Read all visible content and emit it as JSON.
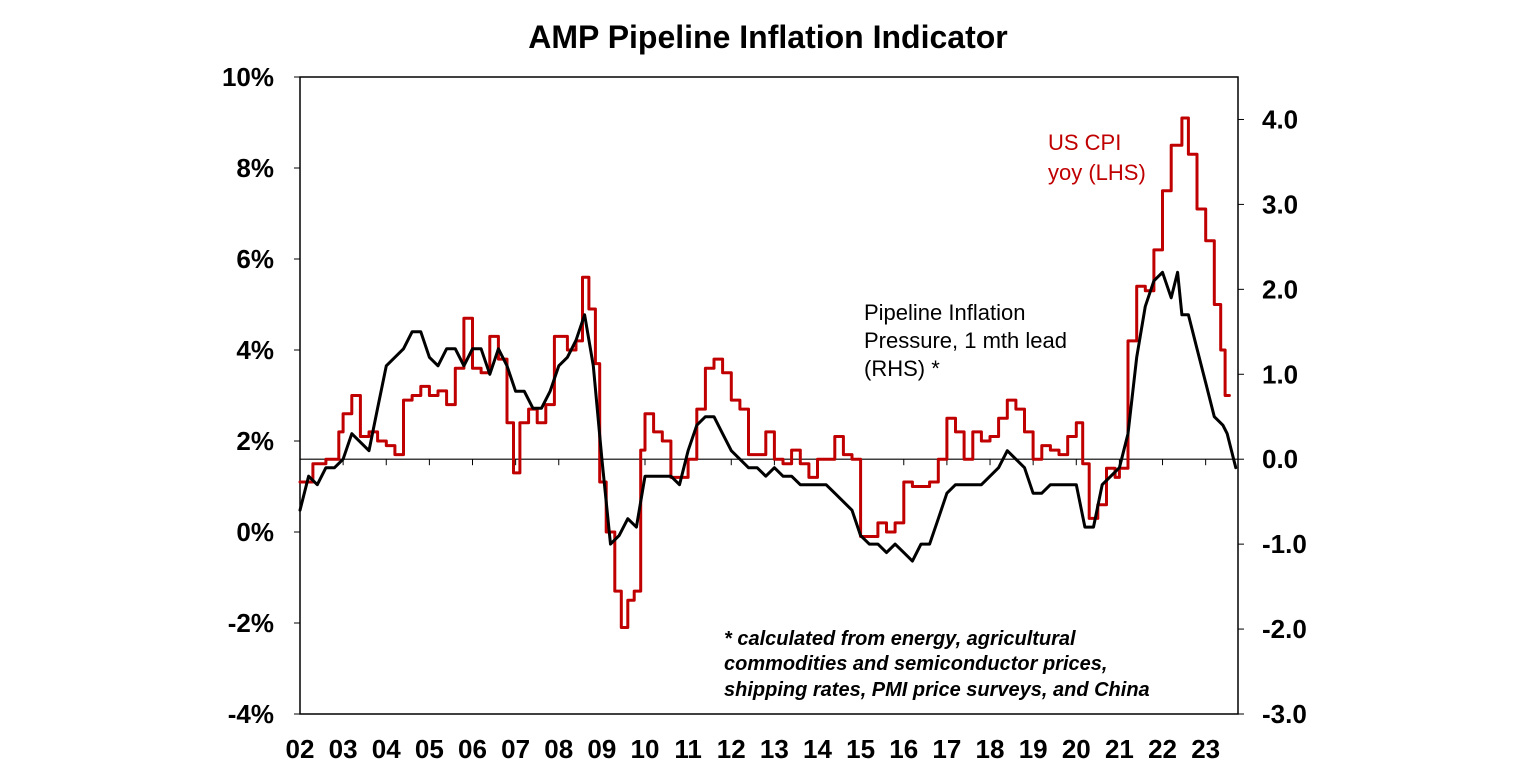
{
  "chart_data": {
    "type": "line",
    "title": "AMP Pipeline Inflation Indicator",
    "x_labels": [
      "02",
      "03",
      "04",
      "05",
      "06",
      "07",
      "08",
      "09",
      "10",
      "11",
      "12",
      "13",
      "14",
      "15",
      "16",
      "17",
      "18",
      "19",
      "20",
      "21",
      "22",
      "23"
    ],
    "x_range": [
      2002.0,
      2023.75
    ],
    "y_left": {
      "range": [
        -4,
        10
      ],
      "ticks": [
        -4,
        -2,
        0,
        2,
        4,
        6,
        8,
        10
      ],
      "tick_labels": [
        "-4%",
        "-2%",
        "0%",
        "2%",
        "4%",
        "6%",
        "8%",
        "10%"
      ]
    },
    "y_right": {
      "range": [
        -3,
        4.5
      ],
      "ticks": [
        -3,
        -2,
        -1,
        0,
        1,
        2,
        3,
        4
      ],
      "tick_labels": [
        "-3.0",
        "-2.0",
        "-1.0",
        "0.0",
        "1.0",
        "2.0",
        "3.0",
        "4.0"
      ]
    },
    "series": [
      {
        "name": "US CPI yoy (LHS)",
        "axis": "left",
        "color": "#C00000",
        "label_lines": [
          "US CPI",
          "yoy (LHS)"
        ],
        "points": [
          [
            2002.0,
            1.1
          ],
          [
            2002.3,
            1.5
          ],
          [
            2002.6,
            1.6
          ],
          [
            2002.9,
            2.2
          ],
          [
            2003.0,
            2.6
          ],
          [
            2003.2,
            3.0
          ],
          [
            2003.4,
            2.1
          ],
          [
            2003.6,
            2.2
          ],
          [
            2003.8,
            2.0
          ],
          [
            2004.0,
            1.9
          ],
          [
            2004.2,
            1.7
          ],
          [
            2004.4,
            2.9
          ],
          [
            2004.6,
            3.0
          ],
          [
            2004.8,
            3.2
          ],
          [
            2005.0,
            3.0
          ],
          [
            2005.2,
            3.1
          ],
          [
            2005.4,
            2.8
          ],
          [
            2005.6,
            3.6
          ],
          [
            2005.8,
            4.7
          ],
          [
            2006.0,
            3.6
          ],
          [
            2006.2,
            3.5
          ],
          [
            2006.4,
            4.3
          ],
          [
            2006.6,
            3.8
          ],
          [
            2006.8,
            2.4
          ],
          [
            2006.95,
            1.3
          ],
          [
            2007.1,
            2.4
          ],
          [
            2007.3,
            2.7
          ],
          [
            2007.5,
            2.4
          ],
          [
            2007.7,
            2.8
          ],
          [
            2007.9,
            4.3
          ],
          [
            2008.0,
            4.3
          ],
          [
            2008.2,
            4.0
          ],
          [
            2008.4,
            4.2
          ],
          [
            2008.55,
            5.6
          ],
          [
            2008.7,
            4.9
          ],
          [
            2008.85,
            3.7
          ],
          [
            2008.95,
            1.1
          ],
          [
            2009.1,
            0.0
          ],
          [
            2009.3,
            -1.3
          ],
          [
            2009.45,
            -2.1
          ],
          [
            2009.6,
            -1.5
          ],
          [
            2009.75,
            -1.3
          ],
          [
            2009.9,
            1.8
          ],
          [
            2010.0,
            2.6
          ],
          [
            2010.2,
            2.2
          ],
          [
            2010.4,
            2.0
          ],
          [
            2010.6,
            1.2
          ],
          [
            2010.8,
            1.2
          ],
          [
            2011.0,
            1.6
          ],
          [
            2011.2,
            2.7
          ],
          [
            2011.4,
            3.6
          ],
          [
            2011.6,
            3.8
          ],
          [
            2011.8,
            3.5
          ],
          [
            2012.0,
            2.9
          ],
          [
            2012.2,
            2.7
          ],
          [
            2012.4,
            1.7
          ],
          [
            2012.6,
            1.7
          ],
          [
            2012.8,
            2.2
          ],
          [
            2013.0,
            1.6
          ],
          [
            2013.2,
            1.5
          ],
          [
            2013.4,
            1.8
          ],
          [
            2013.6,
            1.5
          ],
          [
            2013.8,
            1.2
          ],
          [
            2014.0,
            1.6
          ],
          [
            2014.2,
            1.6
          ],
          [
            2014.4,
            2.1
          ],
          [
            2014.6,
            1.7
          ],
          [
            2014.8,
            1.6
          ],
          [
            2015.0,
            -0.1
          ],
          [
            2015.2,
            -0.1
          ],
          [
            2015.4,
            0.2
          ],
          [
            2015.6,
            0.0
          ],
          [
            2015.8,
            0.2
          ],
          [
            2016.0,
            1.1
          ],
          [
            2016.2,
            1.0
          ],
          [
            2016.4,
            1.0
          ],
          [
            2016.6,
            1.1
          ],
          [
            2016.8,
            1.6
          ],
          [
            2017.0,
            2.5
          ],
          [
            2017.2,
            2.2
          ],
          [
            2017.4,
            1.6
          ],
          [
            2017.6,
            2.2
          ],
          [
            2017.8,
            2.0
          ],
          [
            2018.0,
            2.1
          ],
          [
            2018.2,
            2.5
          ],
          [
            2018.4,
            2.9
          ],
          [
            2018.6,
            2.7
          ],
          [
            2018.8,
            2.2
          ],
          [
            2019.0,
            1.6
          ],
          [
            2019.2,
            1.9
          ],
          [
            2019.4,
            1.8
          ],
          [
            2019.6,
            1.7
          ],
          [
            2019.8,
            2.1
          ],
          [
            2020.0,
            2.4
          ],
          [
            2020.15,
            1.5
          ],
          [
            2020.3,
            0.3
          ],
          [
            2020.5,
            0.6
          ],
          [
            2020.7,
            1.4
          ],
          [
            2020.9,
            1.2
          ],
          [
            2021.0,
            1.4
          ],
          [
            2021.2,
            4.2
          ],
          [
            2021.4,
            5.4
          ],
          [
            2021.6,
            5.3
          ],
          [
            2021.8,
            6.2
          ],
          [
            2022.0,
            7.5
          ],
          [
            2022.2,
            8.5
          ],
          [
            2022.45,
            9.1
          ],
          [
            2022.6,
            8.3
          ],
          [
            2022.8,
            7.1
          ],
          [
            2023.0,
            6.4
          ],
          [
            2023.2,
            5.0
          ],
          [
            2023.35,
            4.0
          ],
          [
            2023.45,
            3.0
          ],
          [
            2023.55,
            3.0
          ]
        ]
      },
      {
        "name": "Pipeline Inflation Pressure, 1 mth lead (RHS) *",
        "axis": "right",
        "color": "#000000",
        "label_lines": [
          "Pipeline Inflation",
          "Pressure, 1 mth lead",
          "(RHS) *"
        ],
        "points": [
          [
            2002.0,
            -0.6
          ],
          [
            2002.2,
            -0.2
          ],
          [
            2002.4,
            -0.3
          ],
          [
            2002.6,
            -0.1
          ],
          [
            2002.8,
            -0.1
          ],
          [
            2003.0,
            0.0
          ],
          [
            2003.2,
            0.3
          ],
          [
            2003.4,
            0.2
          ],
          [
            2003.6,
            0.1
          ],
          [
            2003.8,
            0.6
          ],
          [
            2004.0,
            1.1
          ],
          [
            2004.2,
            1.2
          ],
          [
            2004.4,
            1.3
          ],
          [
            2004.6,
            1.5
          ],
          [
            2004.8,
            1.5
          ],
          [
            2005.0,
            1.2
          ],
          [
            2005.2,
            1.1
          ],
          [
            2005.4,
            1.3
          ],
          [
            2005.6,
            1.3
          ],
          [
            2005.8,
            1.1
          ],
          [
            2006.0,
            1.3
          ],
          [
            2006.2,
            1.3
          ],
          [
            2006.4,
            1.0
          ],
          [
            2006.6,
            1.3
          ],
          [
            2006.8,
            1.1
          ],
          [
            2007.0,
            0.8
          ],
          [
            2007.2,
            0.8
          ],
          [
            2007.4,
            0.6
          ],
          [
            2007.6,
            0.6
          ],
          [
            2007.8,
            0.8
          ],
          [
            2008.0,
            1.1
          ],
          [
            2008.2,
            1.2
          ],
          [
            2008.4,
            1.4
          ],
          [
            2008.6,
            1.7
          ],
          [
            2008.8,
            1.1
          ],
          [
            2009.0,
            0.0
          ],
          [
            2009.2,
            -1.0
          ],
          [
            2009.4,
            -0.9
          ],
          [
            2009.6,
            -0.7
          ],
          [
            2009.8,
            -0.8
          ],
          [
            2010.0,
            -0.2
          ],
          [
            2010.2,
            -0.2
          ],
          [
            2010.4,
            -0.2
          ],
          [
            2010.6,
            -0.2
          ],
          [
            2010.8,
            -0.3
          ],
          [
            2011.0,
            0.1
          ],
          [
            2011.2,
            0.4
          ],
          [
            2011.4,
            0.5
          ],
          [
            2011.6,
            0.5
          ],
          [
            2011.8,
            0.3
          ],
          [
            2012.0,
            0.1
          ],
          [
            2012.2,
            0.0
          ],
          [
            2012.4,
            -0.1
          ],
          [
            2012.6,
            -0.1
          ],
          [
            2012.8,
            -0.2
          ],
          [
            2013.0,
            -0.1
          ],
          [
            2013.2,
            -0.2
          ],
          [
            2013.4,
            -0.2
          ],
          [
            2013.6,
            -0.3
          ],
          [
            2013.8,
            -0.3
          ],
          [
            2014.0,
            -0.3
          ],
          [
            2014.2,
            -0.3
          ],
          [
            2014.4,
            -0.4
          ],
          [
            2014.6,
            -0.5
          ],
          [
            2014.8,
            -0.6
          ],
          [
            2015.0,
            -0.9
          ],
          [
            2015.2,
            -1.0
          ],
          [
            2015.4,
            -1.0
          ],
          [
            2015.6,
            -1.1
          ],
          [
            2015.8,
            -1.0
          ],
          [
            2016.0,
            -1.1
          ],
          [
            2016.2,
            -1.2
          ],
          [
            2016.4,
            -1.0
          ],
          [
            2016.6,
            -1.0
          ],
          [
            2016.8,
            -0.7
          ],
          [
            2017.0,
            -0.4
          ],
          [
            2017.2,
            -0.3
          ],
          [
            2017.4,
            -0.3
          ],
          [
            2017.6,
            -0.3
          ],
          [
            2017.8,
            -0.3
          ],
          [
            2018.0,
            -0.2
          ],
          [
            2018.2,
            -0.1
          ],
          [
            2018.4,
            0.1
          ],
          [
            2018.6,
            0.0
          ],
          [
            2018.8,
            -0.1
          ],
          [
            2019.0,
            -0.4
          ],
          [
            2019.2,
            -0.4
          ],
          [
            2019.4,
            -0.3
          ],
          [
            2019.6,
            -0.3
          ],
          [
            2019.8,
            -0.3
          ],
          [
            2020.0,
            -0.3
          ],
          [
            2020.2,
            -0.8
          ],
          [
            2020.4,
            -0.8
          ],
          [
            2020.6,
            -0.3
          ],
          [
            2020.8,
            -0.2
          ],
          [
            2021.0,
            -0.1
          ],
          [
            2021.2,
            0.3
          ],
          [
            2021.4,
            1.2
          ],
          [
            2021.6,
            1.8
          ],
          [
            2021.8,
            2.1
          ],
          [
            2022.0,
            2.2
          ],
          [
            2022.2,
            1.9
          ],
          [
            2022.35,
            2.2
          ],
          [
            2022.45,
            1.7
          ],
          [
            2022.6,
            1.7
          ],
          [
            2022.8,
            1.3
          ],
          [
            2023.0,
            0.9
          ],
          [
            2023.2,
            0.5
          ],
          [
            2023.4,
            0.4
          ],
          [
            2023.5,
            0.3
          ],
          [
            2023.6,
            0.1
          ],
          [
            2023.7,
            -0.1
          ]
        ]
      }
    ],
    "footnote_lines": [
      "* calculated from energy, agricultural",
      "commodities and semiconductor prices,",
      "shipping rates, PMI price surveys, and China"
    ]
  }
}
